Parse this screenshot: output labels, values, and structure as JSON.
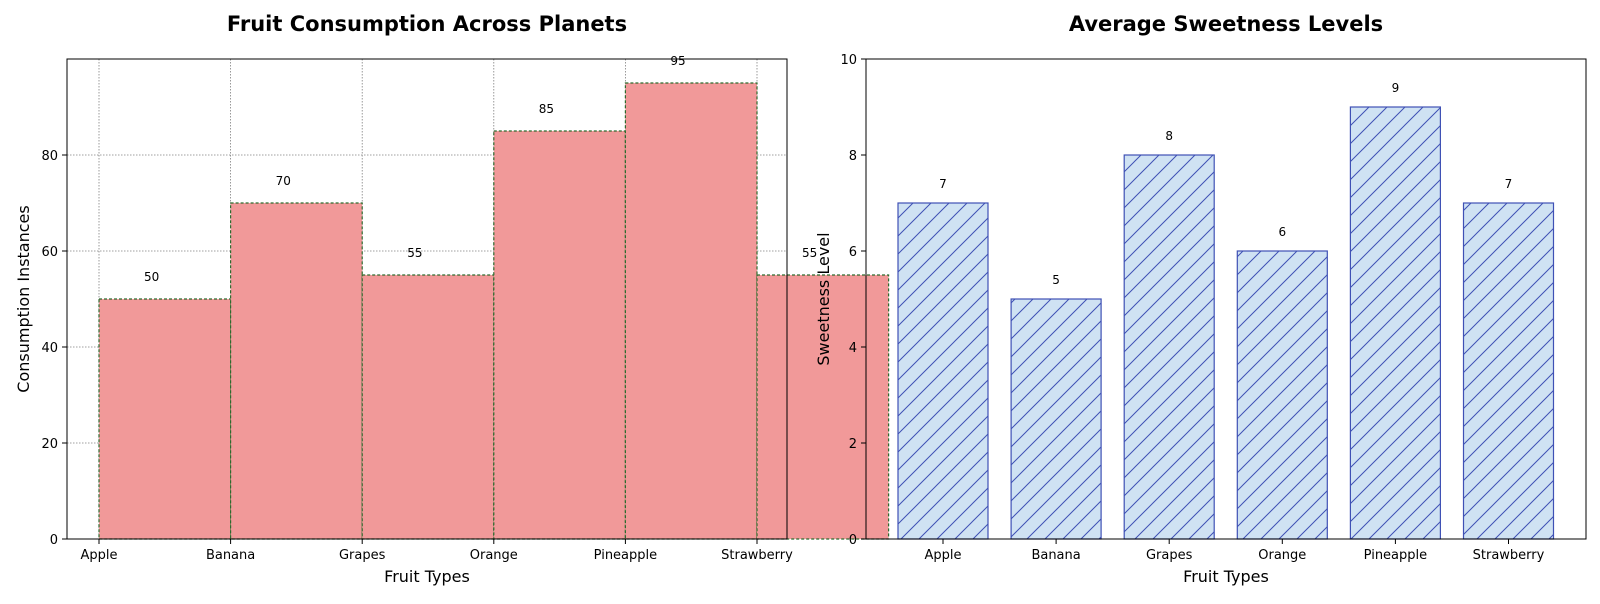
{
  "chart_data": [
    {
      "type": "bar",
      "title": "Fruit Consumption Across Planets",
      "xlabel": "Fruit Types",
      "ylabel": "Consumption Instances",
      "categories": [
        "Apple",
        "Banana",
        "Grapes",
        "Orange",
        "Pineapple",
        "Strawberry"
      ],
      "values": [
        50,
        70,
        55,
        85,
        95,
        55
      ],
      "ylim": [
        0,
        100
      ],
      "yticks": [
        0,
        20,
        40,
        60,
        80
      ],
      "grid": true,
      "bar_color": "#f19999",
      "edge_color": "#2e6b2e",
      "edge_style": "dashed",
      "bar_alignment": "edge",
      "data_labels": true
    },
    {
      "type": "bar",
      "title": "Average Sweetness Levels",
      "xlabel": "Fruit Types",
      "ylabel": "Sweetness Level",
      "categories": [
        "Apple",
        "Banana",
        "Grapes",
        "Orange",
        "Pineapple",
        "Strawberry"
      ],
      "values": [
        7,
        5,
        8,
        6,
        9,
        7
      ],
      "ylim": [
        0,
        10
      ],
      "yticks": [
        0,
        2,
        4,
        6,
        8,
        10
      ],
      "grid": false,
      "bar_color": "#cfe2f3",
      "edge_color": "#3f51b5",
      "hatch": "diagonal",
      "bar_alignment": "center",
      "data_labels": true
    }
  ]
}
